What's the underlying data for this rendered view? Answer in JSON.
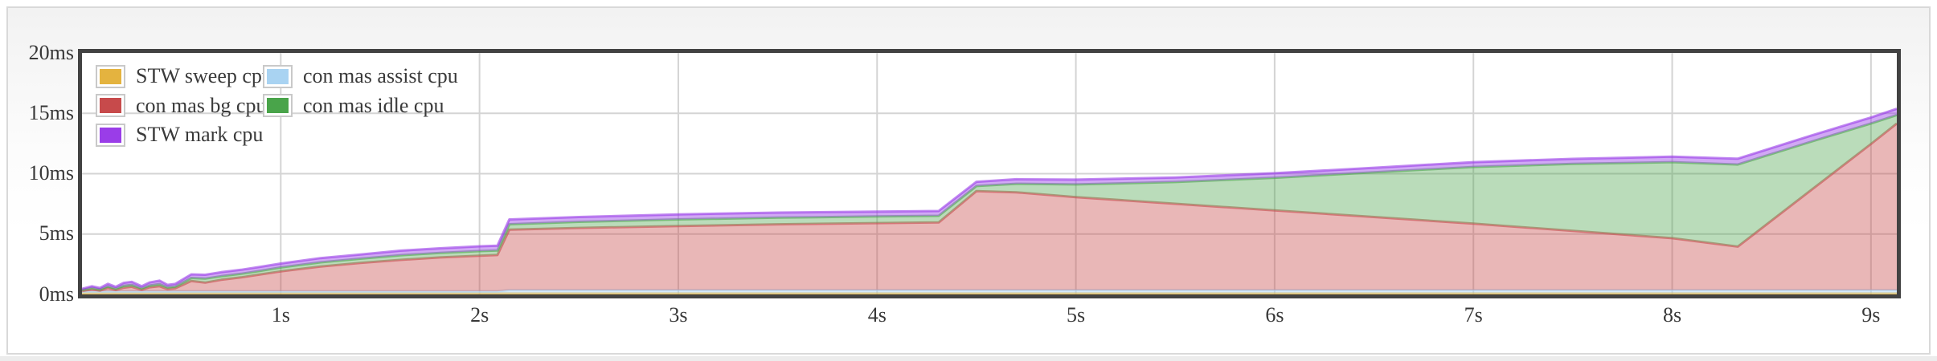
{
  "chart_data": {
    "type": "area",
    "stacked": true,
    "title": "",
    "xlabel": "",
    "ylabel": "",
    "x_unit": "s",
    "y_unit": "ms",
    "xlim": [
      0,
      9.13
    ],
    "ylim": [
      0,
      20
    ],
    "grid": true,
    "legend_position": "top-left-inside",
    "x": [
      0,
      0.05,
      0.09,
      0.13,
      0.17,
      0.21,
      0.25,
      0.3,
      0.34,
      0.39,
      0.43,
      0.47,
      0.55,
      0.62,
      0.7,
      0.8,
      0.9,
      1.0,
      1.2,
      1.4,
      1.6,
      1.8,
      2.0,
      2.09,
      2.15,
      2.5,
      3.0,
      3.5,
      4.0,
      4.31,
      4.5,
      4.7,
      5.0,
      5.5,
      6.0,
      6.5,
      7.0,
      7.5,
      8.0,
      8.33,
      8.7,
      9.0,
      9.13
    ],
    "series": [
      {
        "name": "STW sweep cpu",
        "color": "#E4B33F",
        "fill_alpha": 0.5,
        "stroke_alpha": 0.62,
        "values": [
          0.08,
          0.08,
          0.08,
          0.08,
          0.08,
          0.08,
          0.08,
          0.08,
          0.08,
          0.08,
          0.08,
          0.08,
          0.08,
          0.08,
          0.08,
          0.08,
          0.08,
          0.08,
          0.08,
          0.08,
          0.08,
          0.08,
          0.08,
          0.08,
          0.08,
          0.08,
          0.08,
          0.08,
          0.08,
          0.08,
          0.08,
          0.08,
          0.08,
          0.08,
          0.08,
          0.08,
          0.08,
          0.08,
          0.08,
          0.08,
          0.08,
          0.08,
          0.08
        ]
      },
      {
        "name": "con mas assist cpu",
        "color": "#A9D3F2",
        "fill_alpha": 0.42,
        "stroke_alpha": 0.62,
        "values": [
          0.18,
          0.18,
          0.18,
          0.18,
          0.18,
          0.18,
          0.18,
          0.18,
          0.18,
          0.18,
          0.18,
          0.18,
          0.18,
          0.18,
          0.18,
          0.18,
          0.18,
          0.18,
          0.18,
          0.18,
          0.18,
          0.18,
          0.18,
          0.18,
          0.28,
          0.28,
          0.28,
          0.28,
          0.28,
          0.28,
          0.28,
          0.28,
          0.28,
          0.28,
          0.28,
          0.28,
          0.28,
          0.28,
          0.28,
          0.28,
          0.28,
          0.28,
          0.28
        ]
      },
      {
        "name": "con mas bg cpu",
        "color": "#C74A4B",
        "fill_alpha": 0.4,
        "stroke_alpha": 0.6,
        "values": [
          0.02,
          0.15,
          0.05,
          0.28,
          0.1,
          0.3,
          0.38,
          0.12,
          0.33,
          0.42,
          0.18,
          0.25,
          0.85,
          0.72,
          0.95,
          1.15,
          1.4,
          1.65,
          2.05,
          2.35,
          2.6,
          2.8,
          2.95,
          3.0,
          5.0,
          5.15,
          5.3,
          5.45,
          5.55,
          5.6,
          8.2,
          8.1,
          7.7,
          7.15,
          6.6,
          6.05,
          5.5,
          4.9,
          4.3,
          3.6,
          8.3,
          12.1,
          13.8
        ]
      },
      {
        "name": "con mas idle cpu",
        "color": "#49A44A",
        "fill_alpha": 0.38,
        "stroke_alpha": 0.58,
        "values": [
          0.1,
          0.12,
          0.1,
          0.12,
          0.12,
          0.15,
          0.15,
          0.12,
          0.15,
          0.18,
          0.15,
          0.15,
          0.25,
          0.33,
          0.3,
          0.3,
          0.3,
          0.32,
          0.35,
          0.35,
          0.38,
          0.38,
          0.38,
          0.38,
          0.45,
          0.5,
          0.55,
          0.55,
          0.55,
          0.55,
          0.42,
          0.7,
          1.05,
          1.8,
          2.7,
          3.7,
          4.7,
          5.55,
          6.3,
          6.8,
          4.0,
          1.7,
          0.7
        ]
      },
      {
        "name": "STW mark cpu",
        "color": "#9A3DE8",
        "fill_alpha": 0.45,
        "stroke_alpha": 0.62,
        "values": [
          0.08,
          0.15,
          0.12,
          0.22,
          0.15,
          0.25,
          0.25,
          0.18,
          0.25,
          0.28,
          0.2,
          0.22,
          0.3,
          0.32,
          0.33,
          0.33,
          0.33,
          0.33,
          0.35,
          0.35,
          0.38,
          0.38,
          0.4,
          0.4,
          0.4,
          0.4,
          0.42,
          0.42,
          0.4,
          0.4,
          0.35,
          0.38,
          0.4,
          0.38,
          0.38,
          0.38,
          0.4,
          0.42,
          0.45,
          0.48,
          0.5,
          0.5,
          0.52
        ]
      }
    ],
    "x_ticks": [
      {
        "value": 1,
        "label": "1s"
      },
      {
        "value": 2,
        "label": "2s"
      },
      {
        "value": 3,
        "label": "3s"
      },
      {
        "value": 4,
        "label": "4s"
      },
      {
        "value": 5,
        "label": "5s"
      },
      {
        "value": 6,
        "label": "6s"
      },
      {
        "value": 7,
        "label": "7s"
      },
      {
        "value": 8,
        "label": "8s"
      },
      {
        "value": 9,
        "label": "9s"
      }
    ],
    "y_ticks": [
      {
        "value": 0,
        "label": "0ms"
      },
      {
        "value": 5,
        "label": "5ms"
      },
      {
        "value": 10,
        "label": "10ms"
      },
      {
        "value": 15,
        "label": "15ms"
      },
      {
        "value": 20,
        "label": "20ms"
      }
    ],
    "legend": {
      "columns": [
        [
          {
            "label": "STW sweep cpu",
            "color": "#E4B33F"
          },
          {
            "label": "con mas bg cpu",
            "color": "#C74A4B"
          },
          {
            "label": "STW mark cpu",
            "color": "#9A3DE8"
          }
        ],
        [
          {
            "label": "con mas assist cpu",
            "color": "#A9D3F2"
          },
          {
            "label": "con mas idle cpu",
            "color": "#49A44A"
          }
        ]
      ]
    },
    "style": {
      "gridline_color": "#d4d4d4",
      "plot_border_color": "#424242",
      "axis_text_color": "#383838"
    }
  }
}
